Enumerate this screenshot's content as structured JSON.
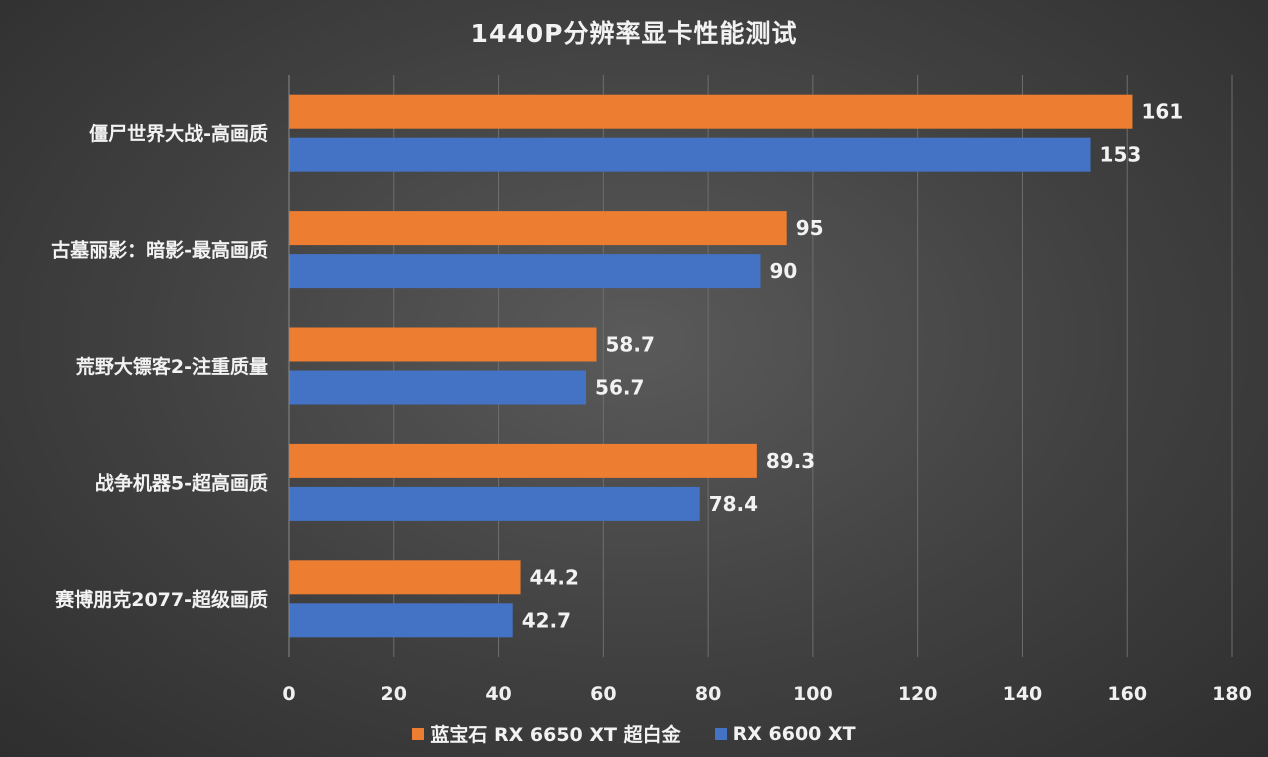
{
  "chart_data": {
    "type": "bar",
    "orientation": "horizontal",
    "title": "1440P分辨率显卡性能测试",
    "categories": [
      "僵尸世界大战-高画质",
      "古墓丽影：暗影-最高画质",
      "荒野大镖客2-注重质量",
      "战争机器5-超高画质",
      "赛博朋克2077-超级画质"
    ],
    "series": [
      {
        "name": "蓝宝石 RX 6650 XT 超白金",
        "color": "#ed7d31",
        "values": [
          161,
          95,
          58.7,
          89.3,
          44.2
        ],
        "labels": [
          "161",
          "95",
          "58.7",
          "89.3",
          "44.2"
        ]
      },
      {
        "name": "RX 6600 XT",
        "color": "#4472c4",
        "values": [
          153,
          90,
          56.7,
          78.4,
          42.7
        ],
        "labels": [
          "153",
          "90",
          "56.7",
          "78.4",
          "42.7"
        ]
      }
    ],
    "xlim": [
      0,
      180
    ],
    "xticks": [
      0,
      20,
      40,
      60,
      80,
      100,
      120,
      140,
      160,
      180
    ],
    "grid": true,
    "legend_position": "bottom"
  }
}
